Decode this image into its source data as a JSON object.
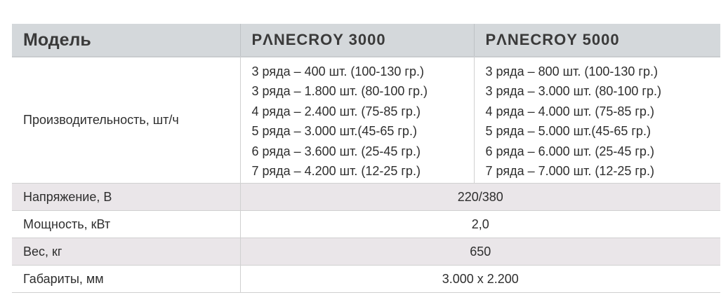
{
  "header": {
    "model": "Модель",
    "col1": "PΛNECROY 3000",
    "col2": "PΛNECROY 5000"
  },
  "productivity": {
    "label": "Производительность, шт/ч",
    "col1": [
      "3 ряда – 400 шт. (100-130 гр.)",
      "3 ряда – 1.800 шт. (80-100 гр.)",
      "4 ряда – 2.400 шт. (75-85 гр.)",
      "5 ряда – 3.000 шт.(45-65 гр.)",
      "6 ряда – 3.600 шт. (25-45 гр.)",
      "7 ряда – 4.200 шт. (12-25 гр.)"
    ],
    "col2": [
      "3 ряда – 800 шт. (100-130 гр.)",
      "3 ряда – 3.000 шт. (80-100 гр.)",
      "4 ряда – 4.000 шт. (75-85 гр.)",
      "5 ряда – 5.000 шт.(45-65 гр.)",
      "6 ряда – 6.000 шт. (25-45 гр.)",
      "7 ряда – 7.000 шт. (12-25 гр.)"
    ]
  },
  "rows": [
    {
      "label": "Напряжение, В",
      "value": "220/380"
    },
    {
      "label": "Мощность, кВт",
      "value": "2,0"
    },
    {
      "label": "Вес, кг",
      "value": "650"
    },
    {
      "label": "Габариты, мм",
      "value": "3.000 х 2.200"
    }
  ]
}
